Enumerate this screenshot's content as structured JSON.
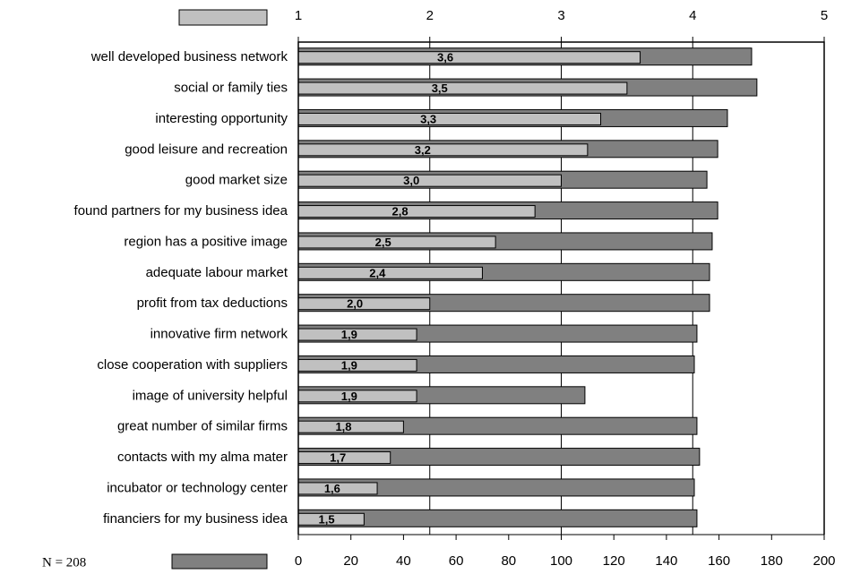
{
  "chart_data": {
    "type": "bar",
    "orientation": "horizontal",
    "annotation": "N = 208",
    "categories": [
      "well developed business network",
      "social or family ties",
      "interesting opportunity",
      "good leisure and recreation",
      "good market size",
      "found partners for my business idea",
      "region has a positive image",
      "adequate labour market",
      "profit from tax deductions",
      "innovative firm network",
      "close cooperation with suppliers",
      "image of university helpful",
      "great number of similar firms",
      "contacts with my alma mater",
      "incubator or technology center",
      "financiers for my business idea"
    ],
    "series": [
      {
        "color": "#808080",
        "values": [
          172.4,
          174.4,
          163.2,
          159.5,
          155.4,
          159.5,
          157.4,
          156.4,
          156.4,
          151.6,
          150.6,
          109,
          151.6,
          152.6,
          150.6,
          151.6
        ]
      },
      {
        "color": "#c0c0c0",
        "axis": "x2",
        "values": [
          3.6,
          3.5,
          3.3,
          3.2,
          3.0,
          2.8,
          2.5,
          2.4,
          2.0,
          1.9,
          1.9,
          1.9,
          1.8,
          1.7,
          1.6,
          1.5
        ],
        "value_labels": [
          "3,6",
          "3,5",
          "3,3",
          "3,2",
          "3,0",
          "2,8",
          "2,5",
          "2,4",
          "2,0",
          "1,9",
          "1,9",
          "1,9",
          "1,8",
          "1,7",
          "1,6",
          "1,5"
        ]
      }
    ],
    "xlim": [
      0,
      200
    ],
    "xticks": [
      0,
      20,
      40,
      60,
      80,
      100,
      120,
      140,
      160,
      180,
      200
    ],
    "x2lim": [
      1,
      5
    ],
    "x2ticks": [
      1,
      2,
      3,
      4,
      5
    ],
    "grid": true
  }
}
